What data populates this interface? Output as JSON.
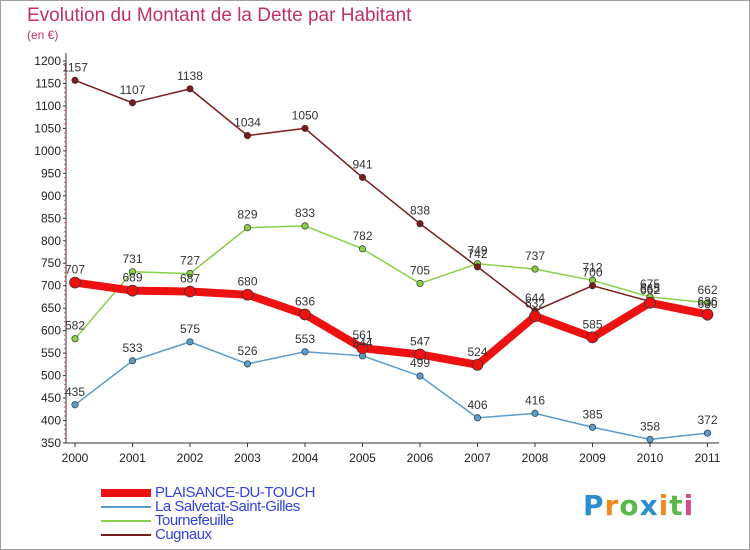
{
  "title": "Evolution du Montant de la Dette par Habitant",
  "subtitle": "(en €)",
  "brand": {
    "letters": [
      "P",
      "r",
      "o",
      "x",
      "i",
      "t",
      "i"
    ],
    "colors": [
      "#2a8ed0",
      "#f08a1c",
      "#5cb848",
      "#2a8ed0",
      "#f08a1c",
      "#5cb848",
      "#d84a8a"
    ]
  },
  "chart_data": {
    "type": "line",
    "x": [
      "2000",
      "2001",
      "2002",
      "2003",
      "2004",
      "2005",
      "2006",
      "2007",
      "2008",
      "2009",
      "2010",
      "2011"
    ],
    "ylim": [
      350,
      1200
    ],
    "yticks": [
      350,
      400,
      450,
      500,
      550,
      600,
      650,
      700,
      750,
      800,
      850,
      900,
      950,
      1000,
      1050,
      1100,
      1150,
      1200
    ],
    "grid": false,
    "legend_position": "bottom-left",
    "series": [
      {
        "name": "PLAISANCE-DU-TOUCH",
        "color": "#ee1111",
        "width": 8,
        "values": [
          707,
          689,
          687,
          680,
          636,
          561,
          547,
          524,
          632,
          585,
          662,
          636
        ]
      },
      {
        "name": "La Salvetat-Saint-Gilles",
        "color": "#5a9ccc",
        "width": 1.5,
        "values": [
          435,
          533,
          575,
          526,
          553,
          544,
          499,
          406,
          416,
          385,
          358,
          372
        ]
      },
      {
        "name": "Tournefeuille",
        "color": "#88d048",
        "width": 1.5,
        "values": [
          582,
          731,
          727,
          829,
          833,
          782,
          705,
          749,
          737,
          712,
          675,
          662
        ]
      },
      {
        "name": "Cugnaux",
        "color": "#7a1a1a",
        "width": 1.5,
        "values": [
          1157,
          1107,
          1138,
          1034,
          1050,
          941,
          838,
          742,
          644,
          700,
          665,
          630
        ]
      }
    ]
  }
}
